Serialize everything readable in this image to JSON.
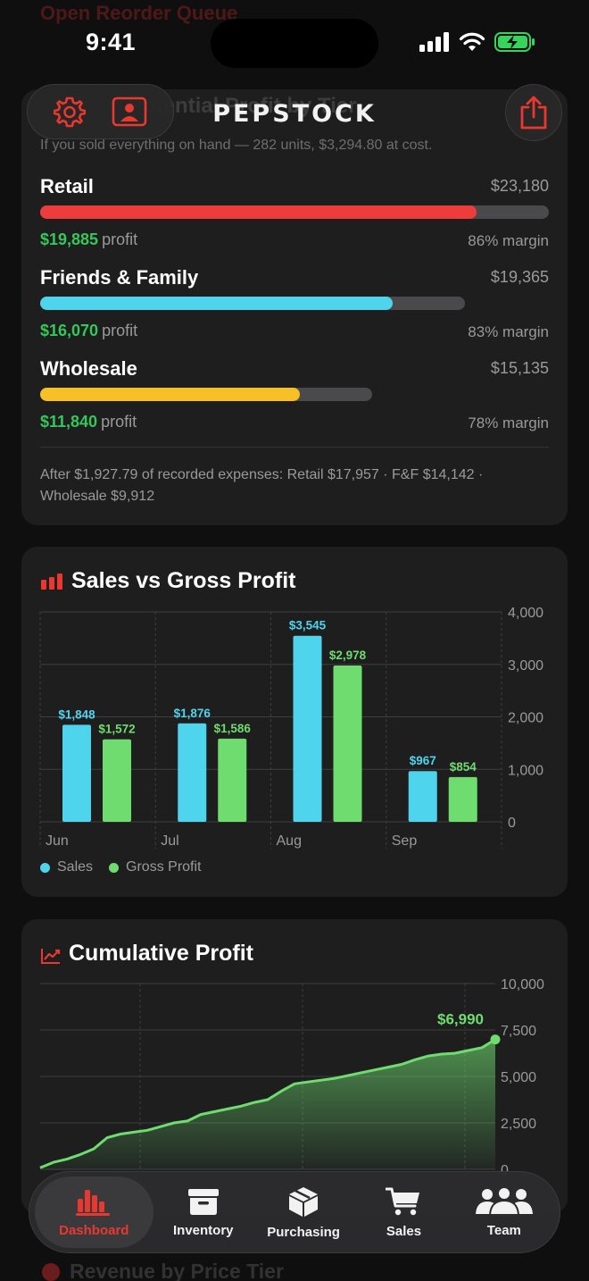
{
  "status": {
    "time": "9:41"
  },
  "ghost_top": "Open Reorder Queue",
  "header": {
    "title": "PEPSTOCK"
  },
  "card1": {
    "ghost_title": "Potential Profit by Tier",
    "subtitle": "If you sold everything on hand — 282 units, $3,294.80 at cost.",
    "tiers": [
      {
        "name": "Retail",
        "revenue": "$23,180",
        "profit": "$19,885",
        "profit_label": "profit",
        "margin": "86% margin",
        "color": "#ee3b3b",
        "revenue_share": 1.0,
        "profit_share": 0.858
      },
      {
        "name": "Friends & Family",
        "revenue": "$19,365",
        "profit": "$16,070",
        "profit_label": "profit",
        "margin": "83% margin",
        "color": "#4fd4ee",
        "revenue_share": 0.835,
        "profit_share": 0.693
      },
      {
        "name": "Wholesale",
        "revenue": "$15,135",
        "profit": "$11,840",
        "profit_label": "profit",
        "margin": "78% margin",
        "color": "#f6c026",
        "revenue_share": 0.653,
        "profit_share": 0.511
      }
    ],
    "note": "After $1,927.79 of recorded expenses: Retail $17,957 · F&F $14,142 · Wholesale $9,912"
  },
  "chart_data": [
    {
      "type": "bar",
      "title": "Sales vs Gross Profit",
      "categories": [
        "Jun",
        "Jul",
        "Aug",
        "Sep"
      ],
      "series": [
        {
          "name": "Sales",
          "values": [
            1848,
            1876,
            3545,
            967
          ],
          "labels": [
            "$1,848",
            "$1,876",
            "$3,545",
            "$967"
          ],
          "color": "#4fd4ee"
        },
        {
          "name": "Gross Profit",
          "values": [
            1572,
            1586,
            2978,
            854
          ],
          "labels": [
            "$1,572",
            "$1,586",
            "$2,978",
            "$854"
          ],
          "color": "#6fdc6f"
        }
      ],
      "ylim": [
        0,
        4000
      ],
      "yticks": [
        "4,000",
        "3,000",
        "2,000",
        "1,000",
        "0"
      ],
      "grid": true,
      "legend": "bottom-left"
    },
    {
      "type": "area",
      "title": "Cumulative Profit",
      "ylim": [
        0,
        10000
      ],
      "yticks": [
        "10,000",
        "7,500",
        "5,000",
        "2,500",
        "0"
      ],
      "end_label": "$6,990",
      "color": "#6fdc6f",
      "x": [
        0,
        1,
        2,
        3,
        4,
        5,
        6,
        7,
        8,
        9,
        10,
        11,
        12,
        13,
        14,
        15,
        16,
        17,
        18,
        19,
        20,
        21,
        22,
        23,
        24,
        25,
        26,
        27,
        28,
        29,
        30,
        31,
        32,
        33,
        34,
        35,
        36,
        37,
        38,
        39,
        40
      ],
      "values": [
        80,
        380,
        550,
        800,
        1100,
        1700,
        1900,
        2000,
        2100,
        2300,
        2500,
        2600,
        2950,
        3100,
        3250,
        3400,
        3600,
        3750,
        4200,
        4600,
        4700,
        4800,
        4900,
        5050,
        5200,
        5350,
        5500,
        5650,
        5900,
        6100,
        6200,
        6250,
        6400,
        6550,
        6990,
        6990,
        6990,
        6990,
        6990,
        6990,
        6990
      ],
      "grid": true
    }
  ],
  "card2": {
    "legend": {
      "sales": "Sales",
      "gross_profit": "Gross Profit"
    }
  },
  "tabs": [
    {
      "label": "Dashboard",
      "icon": "bar-chart-icon",
      "active": true
    },
    {
      "label": "Inventory",
      "icon": "archive-box-icon",
      "active": false
    },
    {
      "label": "Purchasing",
      "icon": "package-icon",
      "active": false
    },
    {
      "label": "Sales",
      "icon": "cart-icon",
      "active": false
    },
    {
      "label": "Team",
      "icon": "people-icon",
      "active": false
    }
  ],
  "ghost_bottom": "Revenue by Price Tier",
  "colors": {
    "accent": "#e8382f",
    "profit_green": "#34c759",
    "background": "#0f0f0f",
    "card": "#1e1e1f"
  }
}
